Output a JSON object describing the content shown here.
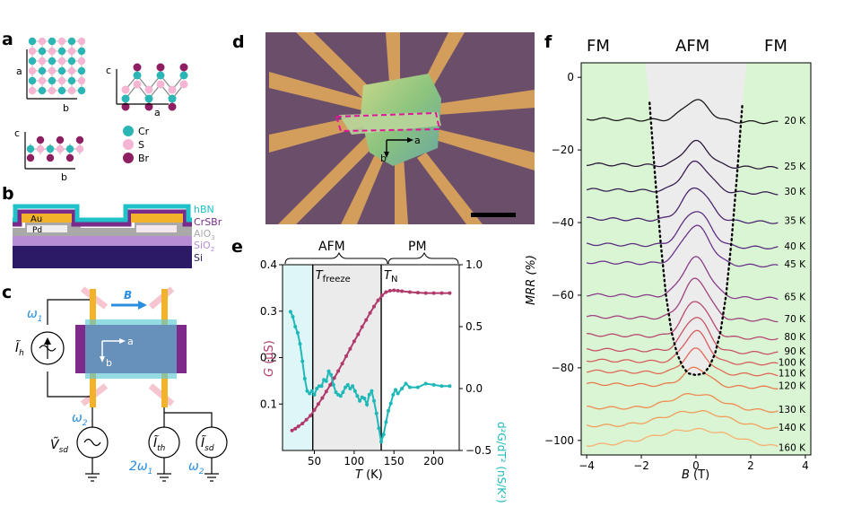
{
  "panels": {
    "a": {
      "label": "a",
      "axes": {
        "a": "a",
        "b": "b",
        "c": "c"
      },
      "legend": [
        {
          "name": "Cr",
          "color": "#2bb5b5"
        },
        {
          "name": "S",
          "color": "#f5b5d3"
        },
        {
          "name": "Br",
          "color": "#8e1f62"
        }
      ]
    },
    "b": {
      "label": "b",
      "layers": {
        "au": "Au",
        "pd": "Pd"
      },
      "legend": [
        {
          "name": "hBN",
          "color": "#1ec2c8"
        },
        {
          "name": "CrSBr",
          "color": "#7a2a8a"
        },
        {
          "name": "AlO",
          "sub": "3",
          "color": "#a9a9a9"
        },
        {
          "name": "SiO",
          "sub": "2",
          "color": "#b78dd5"
        },
        {
          "name": "Si",
          "color": "#2c1a66"
        }
      ]
    },
    "c": {
      "label": "c",
      "field": "B",
      "axis_a": "a",
      "axis_b": "b",
      "omega1": "ω",
      "omega1_sub": "1",
      "omega2": "ω",
      "omega2_sub": "2",
      "two_omega1": "2ω",
      "two_omega1_sub": "1",
      "omega2b": "ω",
      "omega2b_sub": "2",
      "Ih": "Ĩ",
      "Ih_sub": "h",
      "Vsd": "Ṽ",
      "Vsd_sub": "sd",
      "Ith": "Ĩ",
      "Ith_sub": "th",
      "Isd": "Ĩ",
      "Isd_sub": "sd"
    },
    "d": {
      "label": "d",
      "axis_a": "a",
      "axis_b": "b"
    },
    "e": {
      "label": "e",
      "regions": [
        "AFM",
        "PM"
      ],
      "tfreeze_main": "T",
      "tfreeze_sub": "freeze",
      "tn_main": "T",
      "tn_sub": "N"
    },
    "f": {
      "label": "f",
      "regions": [
        "FM",
        "AFM",
        "FM"
      ]
    }
  },
  "colors": {
    "cr": "#2bb5b5",
    "s": "#f5b5d3",
    "br": "#8e1f62",
    "g_curve": "#b03a6b",
    "d2g_curve": "#1fb8b8",
    "fm_fill": "#d9f5d3",
    "afm_fill": "#ececec",
    "cyan_region": "#dff6f8",
    "blue_text": "#2a8ee0"
  },
  "chart_data": [
    {
      "type": "line",
      "panel": "e",
      "xlabel_main": "T",
      "xlabel_unit": " (K)",
      "ylabel_main": "G",
      "ylabel_unit": " (μS)",
      "y2label": "d²G/dT² (nS/K²)",
      "xlim": [
        10,
        232
      ],
      "ylim": [
        0.0,
        0.4
      ],
      "y2lim": [
        -0.5,
        1.0
      ],
      "xticks": [
        "50",
        "100",
        "150",
        "200"
      ],
      "xtick_values": [
        50,
        100,
        150,
        200
      ],
      "yticks": [
        "0.1",
        "0.2",
        "0.3",
        "0.4"
      ],
      "ytick_values": [
        0.1,
        0.2,
        0.3,
        0.4
      ],
      "y2ticks": [
        "−0.5",
        "0.0",
        "0.5",
        "1.0"
      ],
      "y2tick_values": [
        -0.5,
        0.0,
        0.5,
        1.0
      ],
      "vlines": {
        "T_freeze": 48,
        "T_N": 134
      },
      "series": [
        {
          "name": "G",
          "axis": "left",
          "x": [
            22,
            26,
            30,
            35,
            40,
            45,
            50,
            55,
            60,
            65,
            70,
            75,
            80,
            85,
            90,
            95,
            100,
            105,
            110,
            115,
            120,
            125,
            130,
            135,
            140,
            145,
            150,
            155,
            160,
            170,
            180,
            190,
            200,
            210,
            220
          ],
          "values": [
            0.043,
            0.047,
            0.052,
            0.058,
            0.066,
            0.075,
            0.087,
            0.1,
            0.113,
            0.127,
            0.141,
            0.156,
            0.171,
            0.187,
            0.203,
            0.219,
            0.235,
            0.25,
            0.266,
            0.281,
            0.296,
            0.31,
            0.323,
            0.334,
            0.341,
            0.344,
            0.345,
            0.344,
            0.343,
            0.341,
            0.34,
            0.339,
            0.339,
            0.339,
            0.339
          ]
        },
        {
          "name": "d2G/dT2",
          "axis": "right",
          "x": [
            20,
            23,
            26,
            29,
            32,
            35,
            38,
            41,
            44,
            47,
            50,
            53,
            56,
            59,
            62,
            65,
            68,
            71,
            74,
            77,
            80,
            83,
            86,
            89,
            92,
            95,
            98,
            101,
            104,
            107,
            110,
            113,
            116,
            119,
            122,
            125,
            128,
            131,
            134,
            137,
            140,
            143,
            146,
            149,
            152,
            155,
            160,
            165,
            170,
            180,
            190,
            200,
            210,
            220
          ],
          "values": [
            0.62,
            0.58,
            0.5,
            0.45,
            0.36,
            0.22,
            0.08,
            -0.02,
            -0.04,
            -0.02,
            -0.05,
            0.0,
            0.02,
            0.02,
            0.07,
            0.06,
            0.14,
            0.11,
            0.03,
            -0.03,
            -0.05,
            -0.06,
            -0.03,
            0.01,
            0.03,
            0.0,
            0.02,
            -0.02,
            -0.06,
            -0.1,
            -0.07,
            -0.08,
            -0.13,
            -0.05,
            -0.02,
            -0.1,
            -0.2,
            -0.32,
            -0.43,
            -0.37,
            -0.27,
            -0.18,
            -0.12,
            -0.05,
            -0.01,
            -0.04,
            0.0,
            0.04,
            0.01,
            0.01,
            0.04,
            0.03,
            0.02,
            0.02
          ]
        }
      ]
    },
    {
      "type": "line",
      "panel": "f",
      "xlabel_main": "B",
      "xlabel_unit": " (T)",
      "ylabel": "MRR (%)",
      "xlim": [
        -4.2,
        4.2
      ],
      "ylim": [
        -104,
        4
      ],
      "xticks": [
        "−4",
        "−2",
        "0",
        "2",
        "4"
      ],
      "xtick_values": [
        -4,
        -2,
        0,
        2,
        4
      ],
      "yticks": [
        "0",
        "−20",
        "−40",
        "−60",
        "−80",
        "−100"
      ],
      "ytick_values": [
        0,
        -20,
        -40,
        -60,
        -80,
        -100
      ],
      "boundary_label": "dotted boundary",
      "boundary": {
        "B": [
          -1.7,
          -1.5,
          -1.3,
          -1.1,
          -0.9,
          -0.7,
          -0.5,
          -0.3,
          0.0,
          0.3,
          0.5,
          0.7,
          0.9,
          1.1,
          1.3,
          1.5,
          1.7
        ],
        "MRR": [
          -7,
          -27,
          -45,
          -60,
          -70,
          -76,
          -79.5,
          -81.5,
          -82,
          -81.5,
          -79.5,
          -76,
          -70,
          -60,
          -45,
          -27,
          -7
        ]
      },
      "series": [
        {
          "name": "20 K",
          "label": "20 K",
          "color": "#1a1a1a",
          "offset": -12,
          "amp": 5.8,
          "width": 0.45
        },
        {
          "name": "25 K",
          "label": "25 K",
          "color": "#2b1a3a",
          "offset": -24.5,
          "amp": 6.8,
          "width": 0.45
        },
        {
          "name": "30 K",
          "label": "30 K",
          "color": "#3a1f55",
          "offset": -31.5,
          "amp": 8.2,
          "width": 0.48
        },
        {
          "name": "35 K",
          "label": "35 K",
          "color": "#4a2670",
          "offset": -39.5,
          "amp": 9.2,
          "width": 0.48
        },
        {
          "name": "40 K",
          "label": "40 K",
          "color": "#5b2f82",
          "offset": -46.5,
          "amp": 9.8,
          "width": 0.5
        },
        {
          "name": "45 K",
          "label": "45 K",
          "color": "#6b358d",
          "offset": -51.5,
          "amp": 10.6,
          "width": 0.5
        },
        {
          "name": "65 K",
          "label": "65 K",
          "color": "#8a3d8a",
          "offset": -60.5,
          "amp": 10.8,
          "width": 0.48
        },
        {
          "name": "70 K",
          "label": "70 K",
          "color": "#a04380",
          "offset": -66.5,
          "amp": 11.0,
          "width": 0.46
        },
        {
          "name": "80 K",
          "label": "80 K",
          "color": "#b84a72",
          "offset": -71.5,
          "amp": 10.0,
          "width": 0.45
        },
        {
          "name": "90 K",
          "label": "90 K",
          "color": "#c95368",
          "offset": -75.5,
          "amp": 9.6,
          "width": 0.44
        },
        {
          "name": "100 K",
          "label": "100 K",
          "color": "#d65e5e",
          "offset": -78.5,
          "amp": 8.6,
          "width": 0.42
        },
        {
          "name": "110 K",
          "label": "110 K",
          "color": "#e06a55",
          "offset": -81.5,
          "amp": 6.6,
          "width": 0.42
        },
        {
          "name": "120 K",
          "label": "120 K",
          "color": "#e97a4e",
          "offset": -85,
          "amp": 5.0,
          "width": 0.45
        },
        {
          "name": "130 K",
          "label": "130 K",
          "color": "#ef8c52",
          "offset": -91.5,
          "amp": 4.3,
          "width": 0.9
        },
        {
          "name": "140 K",
          "label": "140 K",
          "color": "#f39d5c",
          "offset": -96.5,
          "amp": 4.5,
          "width": 1.2
        },
        {
          "name": "160 K",
          "label": "160 K",
          "color": "#f7b070",
          "offset": -102,
          "amp": 5.0,
          "width": 1.5
        }
      ]
    }
  ]
}
